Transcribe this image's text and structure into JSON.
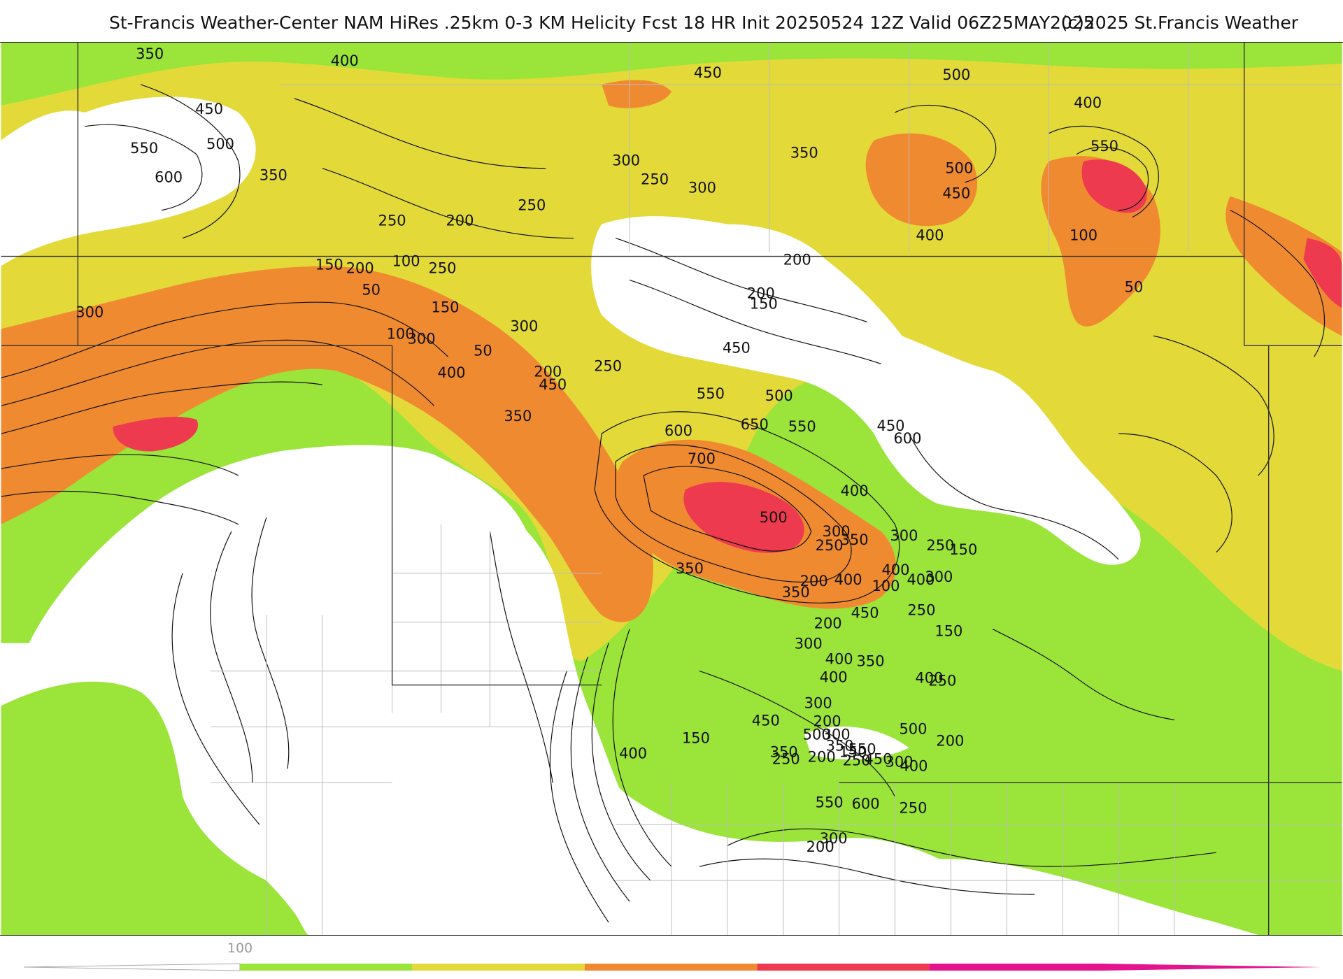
{
  "title": {
    "main": "St-Francis Weather-Center NAM HiRes .25km 0-3 KM Helicity Fcst 18 HR Init 20250524 12Z  Valid 06Z25MAY2025",
    "copyright": "(c)2025 St.Francis Weather"
  },
  "legend": {
    "first_tick": "100",
    "colors": [
      "#9be43a",
      "#e3da3a",
      "#f08a30",
      "#ee3a4e",
      "#e3148c"
    ]
  },
  "contour_labels": [
    "350",
    "400",
    "450",
    "500",
    "550",
    "600",
    "450",
    "500",
    "400",
    "550",
    "450",
    "500",
    "400",
    "350",
    "300",
    "250",
    "200",
    "150",
    "100",
    "50",
    "300",
    "250",
    "350",
    "300",
    "250",
    "200",
    "150",
    "100",
    "50",
    "200",
    "250",
    "150",
    "100",
    "50",
    "300",
    "250",
    "200",
    "400",
    "450",
    "350",
    "300",
    "200",
    "450",
    "550",
    "600",
    "500",
    "650",
    "700",
    "550",
    "450",
    "600",
    "400",
    "500",
    "300",
    "350",
    "300",
    "250",
    "400",
    "350",
    "200",
    "300",
    "250",
    "400",
    "150",
    "100",
    "250",
    "300",
    "400",
    "450",
    "400",
    "350",
    "200",
    "150",
    "200",
    "250",
    "300",
    "350",
    "400",
    "300",
    "250",
    "200",
    "150",
    "200",
    "550",
    "350",
    "500",
    "450",
    "400",
    "250",
    "300",
    "350",
    "400",
    "450",
    "500",
    "600",
    "550",
    "400",
    "200",
    "300",
    "250",
    "150"
  ]
}
